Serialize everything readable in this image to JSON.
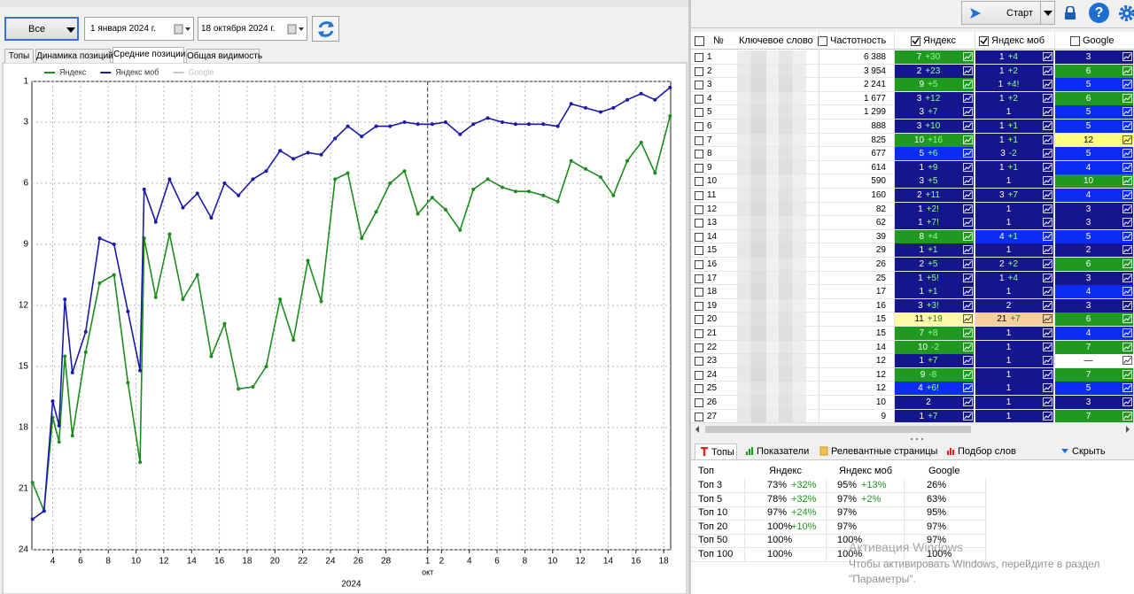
{
  "toolbar": {
    "period": "Все",
    "date_from": "1  января  2024 г.",
    "date_to": "18  октября  2024 г."
  },
  "tabs": [
    "Топы",
    "Динамика позиций",
    "Средние позиции",
    "Общая видимость"
  ],
  "chart_data": {
    "type": "line",
    "legend": "top-left",
    "grid": true,
    "series": [
      {
        "name": "Яндекс",
        "color": "#1e8c1e",
        "values": [
          20.7,
          22.1,
          17.5,
          18.7,
          14.5,
          18.4,
          14.3,
          10.9,
          10.5,
          15.8,
          19.7,
          8.7,
          11.6,
          8.5,
          11.7,
          10.5,
          14.5,
          12.9,
          16.1,
          16,
          15,
          11.7,
          13.7,
          9.8,
          11.8,
          5.8,
          5.5,
          8.7,
          7.4,
          6,
          5.4,
          7.5,
          6.7,
          7.3,
          8.3,
          6.3,
          5.8,
          6.2,
          6.4,
          6.4,
          6.6,
          6.9,
          4.9,
          5.3,
          5.7,
          6.6,
          4.9,
          4,
          5.5,
          2.7
        ]
      },
      {
        "name": "Яндекс моб",
        "color": "#1a1aa8",
        "values": [
          22.5,
          22.1,
          16.7,
          17.9,
          11.7,
          15.3,
          13.3,
          8.7,
          9,
          12.3,
          15.2,
          6.3,
          7.9,
          5.8,
          7.2,
          6.5,
          7.7,
          6,
          6.6,
          5.8,
          5.4,
          4.4,
          4.8,
          4.5,
          4.6,
          3.8,
          3.2,
          3.7,
          3.2,
          3.2,
          3,
          3.1,
          3.1,
          3,
          3.6,
          3.1,
          2.8,
          3,
          3.1,
          3.1,
          3.1,
          3.2,
          2.1,
          2.3,
          2.5,
          2.3,
          1.9,
          1.6,
          1.9,
          1.3
        ]
      },
      {
        "name": "Google",
        "color": "#c8c8c8",
        "values": [
          null,
          null,
          null,
          null,
          null,
          null,
          null,
          null,
          null,
          null,
          null,
          null,
          null,
          null,
          null,
          null,
          null,
          null,
          null,
          null,
          null,
          null,
          null,
          null,
          null,
          null,
          null,
          null,
          null,
          null,
          null,
          null,
          null,
          null,
          null,
          null,
          null,
          null,
          null,
          null,
          null,
          null,
          null,
          null,
          null,
          null,
          null,
          null,
          null,
          null
        ]
      }
    ],
    "x": [
      "2024-09-02T13:00",
      "2024-09-03T09:00",
      "2024-09-04T00:00",
      "2024-09-04T11:00",
      "2024-09-04T21:00",
      "2024-09-05T10:00",
      "2024-09-06T09:00",
      "2024-09-07T09:00",
      "2024-09-08T10:00",
      "2024-09-09T10:00",
      "2024-09-10T07:00",
      "2024-09-10T14:00",
      "2024-09-11T10:00",
      "2024-09-12T10:00",
      "2024-09-13T09:00",
      "2024-09-14T10:00",
      "2024-09-15T10:00",
      "2024-09-16T09:00",
      "2024-09-17T09:00",
      "2024-09-18T10:00",
      "2024-09-19T09:00",
      "2024-09-20T09:00",
      "2024-09-21T08:00",
      "2024-09-22T09:00",
      "2024-09-23T08:00",
      "2024-09-24T08:00",
      "2024-09-25T06:00",
      "2024-09-26T06:00",
      "2024-09-27T07:00",
      "2024-09-28T07:00",
      "2024-09-29T08:00",
      "2024-09-30T07:00",
      "2024-10-01T08:00",
      "2024-10-02T07:00",
      "2024-10-03T08:00",
      "2024-10-04T07:00",
      "2024-10-05T08:00",
      "2024-10-06T09:00",
      "2024-10-07T08:00",
      "2024-10-08T07:00",
      "2024-10-09T08:00",
      "2024-10-10T09:00",
      "2024-10-11T08:00",
      "2024-10-12T09:00",
      "2024-10-13T11:00",
      "2024-10-14T09:00",
      "2024-10-15T09:00",
      "2024-10-16T09:00",
      "2024-10-17T09:00",
      "2024-10-18T11:00"
    ],
    "xlim": [
      "2024-09-02T12:00",
      "2024-10-18T12:00"
    ],
    "xticks": [
      {
        "value": "2024-09-04",
        "label": "4"
      },
      {
        "value": "2024-09-06",
        "label": "6"
      },
      {
        "value": "2024-09-08",
        "label": "8"
      },
      {
        "value": "2024-09-10",
        "label": "10"
      },
      {
        "value": "2024-09-12",
        "label": "12"
      },
      {
        "value": "2024-09-14",
        "label": "14"
      },
      {
        "value": "2024-09-16",
        "label": "16"
      },
      {
        "value": "2024-09-18",
        "label": "18"
      },
      {
        "value": "2024-09-20",
        "label": "20"
      },
      {
        "value": "2024-09-22",
        "label": "22"
      },
      {
        "value": "2024-09-24",
        "label": "24"
      },
      {
        "value": "2024-09-26",
        "label": "26"
      },
      {
        "value": "2024-09-28",
        "label": "28"
      },
      {
        "value": "2024-10-01",
        "label": "1"
      },
      {
        "value": "2024-10-02",
        "label": "2"
      },
      {
        "value": "2024-10-04",
        "label": "4"
      },
      {
        "value": "2024-10-06",
        "label": "6"
      },
      {
        "value": "2024-10-08",
        "label": "8"
      },
      {
        "value": "2024-10-10",
        "label": "10"
      },
      {
        "value": "2024-10-12",
        "label": "12"
      },
      {
        "value": "2024-10-14",
        "label": "14"
      },
      {
        "value": "2024-10-16",
        "label": "16"
      },
      {
        "value": "2024-10-18",
        "label": "18"
      }
    ],
    "xlabel": "2024",
    "annotations": [
      {
        "text": "окт",
        "x": "2024-10-01"
      }
    ],
    "ylim": [
      24,
      1
    ],
    "yticks": [
      1,
      3,
      6,
      9,
      12,
      15,
      18,
      21,
      24
    ]
  },
  "right_toolbar": {
    "start": "Старт",
    "help": "?"
  },
  "keywords": {
    "columns": [
      "№",
      "Ключевое слово",
      "Частотность",
      "Яндекс",
      "Яндекс моб",
      "Google"
    ],
    "rows": [
      {
        "n": "1",
        "freq": "6 388",
        "cells": [
          {
            "pos": "7",
            "chg": "+30",
            "color": "#1f9a1f"
          },
          {
            "pos": "1",
            "chg": "+4",
            "color": "#16168c"
          },
          {
            "pos": "3",
            "color": "#16168c"
          }
        ]
      },
      {
        "n": "2",
        "freq": "3 954",
        "cells": [
          {
            "pos": "2",
            "chg": "+23",
            "color": "#16168c"
          },
          {
            "pos": "1",
            "chg": "+2",
            "color": "#16168c"
          },
          {
            "pos": "6",
            "color": "#1f9a1f"
          }
        ]
      },
      {
        "n": "3",
        "freq": "2 241",
        "cells": [
          {
            "pos": "9",
            "chg": "+5",
            "color": "#1f9a1f"
          },
          {
            "pos": "1",
            "chg": "+4!",
            "color": "#16168c"
          },
          {
            "pos": "5",
            "color": "#0b2cf2"
          }
        ]
      },
      {
        "n": "4",
        "freq": "1 677",
        "cells": [
          {
            "pos": "3",
            "chg": "+12",
            "color": "#16168c"
          },
          {
            "pos": "1",
            "chg": "+2",
            "color": "#16168c"
          },
          {
            "pos": "6",
            "color": "#1f9a1f"
          }
        ]
      },
      {
        "n": "5",
        "freq": "1 299",
        "cells": [
          {
            "pos": "3",
            "chg": "+7",
            "color": "#16168c"
          },
          {
            "pos": "1",
            "color": "#16168c"
          },
          {
            "pos": "5",
            "color": "#0b2cf2"
          }
        ]
      },
      {
        "n": "6",
        "freq": "888",
        "cells": [
          {
            "pos": "3",
            "chg": "+10",
            "color": "#16168c"
          },
          {
            "pos": "1",
            "chg": "+1",
            "color": "#16168c"
          },
          {
            "pos": "5",
            "color": "#0b2cf2"
          }
        ]
      },
      {
        "n": "7",
        "freq": "825",
        "cells": [
          {
            "pos": "10",
            "chg": "+16",
            "color": "#1f9a1f"
          },
          {
            "pos": "1",
            "chg": "+1",
            "color": "#16168c"
          },
          {
            "pos": "12",
            "color": "#ffff80"
          }
        ]
      },
      {
        "n": "8",
        "freq": "677",
        "cells": [
          {
            "pos": "5",
            "chg": "+6",
            "color": "#0b2cf2"
          },
          {
            "pos": "3",
            "chg": "-2",
            "color": "#16168c"
          },
          {
            "pos": "5",
            "color": "#0b2cf2"
          }
        ]
      },
      {
        "n": "9",
        "freq": "614",
        "cells": [
          {
            "pos": "1",
            "chg": "+9",
            "color": "#16168c"
          },
          {
            "pos": "1",
            "chg": "+1",
            "color": "#16168c"
          },
          {
            "pos": "4",
            "color": "#0b2cf2"
          }
        ]
      },
      {
        "n": "10",
        "freq": "590",
        "cells": [
          {
            "pos": "3",
            "chg": "+5",
            "color": "#16168c"
          },
          {
            "pos": "1",
            "color": "#16168c"
          },
          {
            "pos": "10",
            "color": "#1f9a1f"
          }
        ]
      },
      {
        "n": "11",
        "freq": "160",
        "cells": [
          {
            "pos": "2",
            "chg": "+11",
            "color": "#16168c"
          },
          {
            "pos": "3",
            "chg": "+7",
            "color": "#16168c"
          },
          {
            "pos": "4",
            "color": "#0b2cf2"
          }
        ]
      },
      {
        "n": "12",
        "freq": "82",
        "cells": [
          {
            "pos": "1",
            "chg": "+2!",
            "color": "#16168c"
          },
          {
            "pos": "1",
            "color": "#16168c"
          },
          {
            "pos": "3",
            "color": "#16168c"
          }
        ]
      },
      {
        "n": "13",
        "freq": "62",
        "cells": [
          {
            "pos": "1",
            "chg": "+7!",
            "color": "#16168c"
          },
          {
            "pos": "1",
            "color": "#16168c"
          },
          {
            "pos": "3",
            "color": "#16168c"
          }
        ]
      },
      {
        "n": "14",
        "freq": "39",
        "cells": [
          {
            "pos": "8",
            "chg": "+4",
            "color": "#1f9a1f"
          },
          {
            "pos": "4",
            "chg": "+1",
            "color": "#0b2cf2"
          },
          {
            "pos": "5",
            "color": "#0b2cf2"
          }
        ]
      },
      {
        "n": "15",
        "freq": "29",
        "cells": [
          {
            "pos": "1",
            "chg": "+1",
            "color": "#16168c"
          },
          {
            "pos": "1",
            "color": "#16168c"
          },
          {
            "pos": "2",
            "color": "#16168c"
          }
        ]
      },
      {
        "n": "16",
        "freq": "26",
        "cells": [
          {
            "pos": "2",
            "chg": "+5",
            "color": "#16168c"
          },
          {
            "pos": "2",
            "chg": "+2",
            "color": "#16168c"
          },
          {
            "pos": "6",
            "color": "#1f9a1f"
          }
        ]
      },
      {
        "n": "17",
        "freq": "25",
        "cells": [
          {
            "pos": "1",
            "chg": "+5!",
            "color": "#16168c"
          },
          {
            "pos": "1",
            "chg": "+4",
            "color": "#16168c"
          },
          {
            "pos": "3",
            "color": "#16168c"
          }
        ]
      },
      {
        "n": "18",
        "freq": "17",
        "cells": [
          {
            "pos": "1",
            "chg": "+1",
            "color": "#16168c"
          },
          {
            "pos": "1",
            "color": "#16168c"
          },
          {
            "pos": "4",
            "color": "#0b2cf2"
          }
        ]
      },
      {
        "n": "19",
        "freq": "16",
        "cells": [
          {
            "pos": "3",
            "chg": "+3!",
            "color": "#16168c"
          },
          {
            "pos": "2",
            "color": "#16168c"
          },
          {
            "pos": "3",
            "color": "#16168c"
          }
        ]
      },
      {
        "n": "20",
        "freq": "15",
        "cells": [
          {
            "pos": "11",
            "chg": "+19",
            "color": "#fffaa5"
          },
          {
            "pos": "21",
            "chg": "+7",
            "color": "#f7cf9b"
          },
          {
            "pos": "6",
            "color": "#1f9a1f"
          }
        ]
      },
      {
        "n": "21",
        "freq": "15",
        "cells": [
          {
            "pos": "7",
            "chg": "+8",
            "color": "#1f9a1f"
          },
          {
            "pos": "1",
            "color": "#16168c"
          },
          {
            "pos": "4",
            "color": "#0b2cf2"
          }
        ]
      },
      {
        "n": "22",
        "freq": "14",
        "cells": [
          {
            "pos": "10",
            "chg": "-2",
            "color": "#1f9a1f"
          },
          {
            "pos": "1",
            "color": "#16168c"
          },
          {
            "pos": "7",
            "color": "#1f9a1f"
          }
        ]
      },
      {
        "n": "23",
        "freq": "12",
        "cells": [
          {
            "pos": "1",
            "chg": "+7",
            "color": "#16168c"
          },
          {
            "pos": "1",
            "color": "#16168c"
          },
          {
            "pos": "—",
            "color": "#ffffff"
          }
        ]
      },
      {
        "n": "24",
        "freq": "12",
        "cells": [
          {
            "pos": "9",
            "chg": "-8",
            "color": "#1f9a1f"
          },
          {
            "pos": "1",
            "color": "#16168c"
          },
          {
            "pos": "7",
            "color": "#1f9a1f"
          }
        ]
      },
      {
        "n": "25",
        "freq": "12",
        "cells": [
          {
            "pos": "4",
            "chg": "+6!",
            "color": "#0b2cf2"
          },
          {
            "pos": "1",
            "color": "#16168c"
          },
          {
            "pos": "5",
            "color": "#0b2cf2"
          }
        ]
      },
      {
        "n": "26",
        "freq": "10",
        "cells": [
          {
            "pos": "2",
            "color": "#16168c"
          },
          {
            "pos": "1",
            "color": "#16168c"
          },
          {
            "pos": "3",
            "color": "#16168c"
          }
        ]
      },
      {
        "n": "27",
        "freq": "9",
        "cells": [
          {
            "pos": "1",
            "chg": "+7",
            "color": "#16168c"
          },
          {
            "pos": "1",
            "color": "#16168c"
          },
          {
            "pos": "7",
            "color": "#1f9a1f"
          }
        ]
      }
    ]
  },
  "bottom_tabs": [
    "Топы",
    "Показатели",
    "Релевантные страницы",
    "Подбор слов",
    "Скрыть"
  ],
  "tops": {
    "columns": [
      "Топ",
      "Яндекс",
      "Яндекс моб",
      "Google"
    ],
    "rows": [
      [
        "Топ 3",
        [
          "73%",
          "+32%"
        ],
        [
          "95%",
          "+13%"
        ],
        [
          "26%"
        ]
      ],
      [
        "Топ 5",
        [
          "78%",
          "+32%"
        ],
        [
          "97%",
          "+2%"
        ],
        [
          "63%"
        ]
      ],
      [
        "Топ 10",
        [
          "97%",
          "+24%"
        ],
        [
          "97%"
        ],
        [
          "95%"
        ]
      ],
      [
        "Топ 20",
        [
          "100%",
          "+10%"
        ],
        [
          "97%"
        ],
        [
          "97%"
        ]
      ],
      [
        "Топ 50",
        [
          "100%"
        ],
        [
          "100%"
        ],
        [
          "97%"
        ]
      ],
      [
        "Топ 100",
        [
          "100%"
        ],
        [
          "100%"
        ],
        [
          "100%"
        ]
      ]
    ]
  },
  "watermark": {
    "title": "Активация Windows",
    "line1": "Чтобы активировать Windows, перейдите в раздел",
    "line2": "\"Параметры\"."
  }
}
